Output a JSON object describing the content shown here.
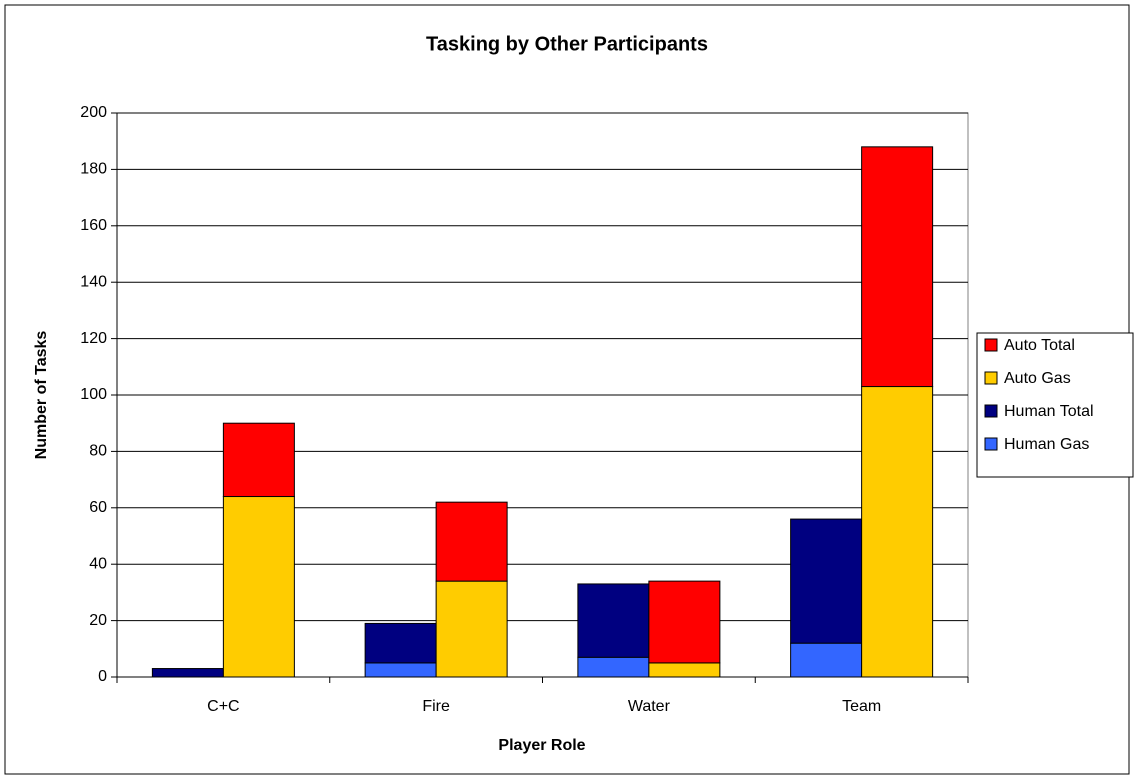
{
  "chart_data": {
    "type": "grouped_stacked_bar",
    "title": "Tasking by Other Participants",
    "x_label": "Player Role",
    "y_label": "Number of Tasks",
    "categories": [
      "C+C",
      "Fire",
      "Water",
      "Team"
    ],
    "series": [
      {
        "name": "Human Gas",
        "color": "#3366ff",
        "stack": 0,
        "values": [
          0,
          5,
          7,
          12
        ]
      },
      {
        "name": "Human Total",
        "color": "#000080",
        "stack": 0,
        "values": [
          3,
          14,
          26,
          44
        ]
      },
      {
        "name": "Auto Gas",
        "color": "#ffcc00",
        "stack": 1,
        "values": [
          64,
          34,
          5,
          103
        ]
      },
      {
        "name": "Auto Total",
        "color": "#ff0000",
        "stack": 1,
        "values": [
          26,
          28,
          29,
          85
        ]
      }
    ],
    "ylim": [
      0,
      200
    ],
    "yticks": [
      0,
      20,
      40,
      60,
      80,
      100,
      120,
      140,
      160,
      180,
      200
    ],
    "grid": true,
    "legend": "right"
  }
}
